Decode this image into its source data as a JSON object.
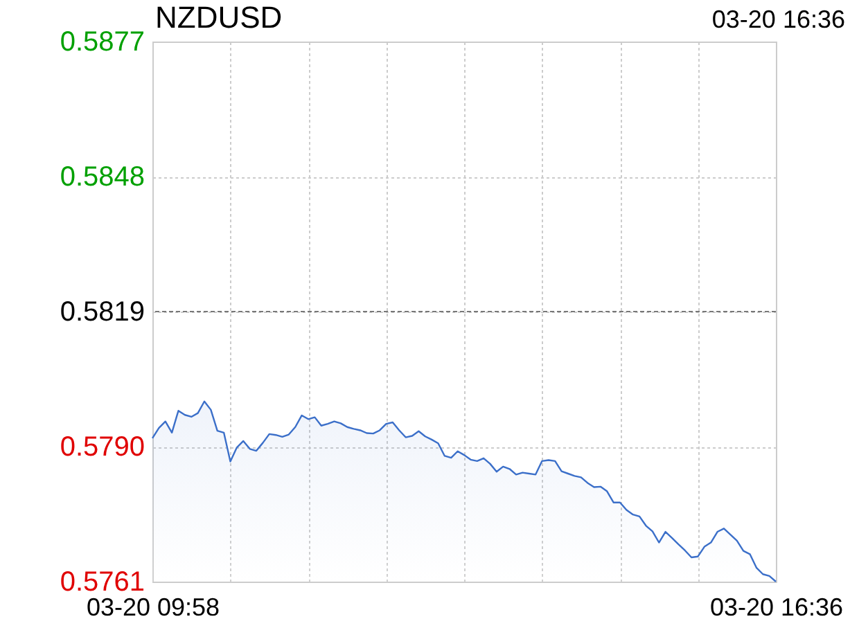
{
  "chart_data": {
    "type": "area",
    "title": "NZDUSD",
    "annotations": [
      "03-20 16:36"
    ],
    "categories": [
      "03-20 09:58",
      null,
      null,
      null,
      null,
      null,
      null,
      null,
      null,
      null,
      null,
      null,
      null,
      null,
      null,
      null,
      null,
      null,
      null,
      null,
      null,
      null,
      null,
      null,
      null,
      null,
      null,
      null,
      null,
      null,
      null,
      null,
      null,
      null,
      null,
      null,
      null,
      null,
      null,
      null,
      null,
      null,
      null,
      null,
      null,
      null,
      null,
      null,
      null,
      null,
      null,
      null,
      null,
      null,
      null,
      null,
      null,
      null,
      null,
      null,
      null,
      null,
      null,
      null,
      null,
      null,
      null,
      null,
      null,
      null,
      null,
      null,
      null,
      null,
      null,
      null,
      null,
      null,
      null,
      null,
      null,
      null,
      null,
      null,
      null,
      null,
      null,
      null,
      null,
      null,
      null,
      null,
      null,
      null,
      null,
      null,
      "03-20 16:36"
    ],
    "series": [
      {
        "color": "#3b6fc9",
        "values": [
          0.57918,
          0.5794,
          0.57954,
          0.5793,
          0.57977,
          0.57968,
          0.57964,
          0.57972,
          0.57997,
          0.57979,
          0.57934,
          0.5793,
          0.57868,
          0.57898,
          0.57912,
          0.57895,
          0.57891,
          0.57908,
          0.57927,
          0.57925,
          0.57921,
          0.57926,
          0.57942,
          0.57967,
          0.57959,
          0.57963,
          0.57945,
          0.57949,
          0.57954,
          0.5795,
          0.57942,
          0.57938,
          0.57935,
          0.57929,
          0.57928,
          0.57935,
          0.57949,
          0.57952,
          0.57935,
          0.5792,
          0.57923,
          0.57933,
          0.57922,
          0.57915,
          0.57907,
          0.5788,
          0.57876,
          0.5789,
          0.57882,
          0.57872,
          0.57869,
          0.57875,
          0.57863,
          0.57846,
          0.57857,
          0.57852,
          0.5784,
          0.57844,
          0.57842,
          0.5784,
          0.57869,
          0.57871,
          0.57869,
          0.57847,
          0.57842,
          0.57837,
          0.57834,
          0.57822,
          0.57813,
          0.57814,
          0.57804,
          0.5778,
          0.5778,
          0.57764,
          0.57754,
          0.5775,
          0.5773,
          0.57718,
          0.57694,
          0.57717,
          0.57704,
          0.5769,
          0.57677,
          0.57662,
          0.57664,
          0.57685,
          0.57694,
          0.57717,
          0.57724,
          0.57711,
          0.57698,
          0.57676,
          0.57669,
          0.5764,
          0.57626,
          0.57622,
          0.5761
        ]
      }
    ],
    "ylim": [
      0.5761,
      0.5877
    ],
    "yticks": [
      {
        "value": 0.5761,
        "label": "0.5761"
      },
      {
        "value": 0.579,
        "label": "0.5790"
      },
      {
        "value": 0.5819,
        "label": "0.5819"
      },
      {
        "value": 0.5848,
        "label": "0.5848"
      },
      {
        "value": 0.5877,
        "label": "0.5877"
      }
    ],
    "ref_lines": [
      {
        "axis": "y",
        "value": 0.5819,
        "color": "#777777",
        "line_style": "dashed"
      }
    ],
    "grid": true,
    "legend": false
  }
}
